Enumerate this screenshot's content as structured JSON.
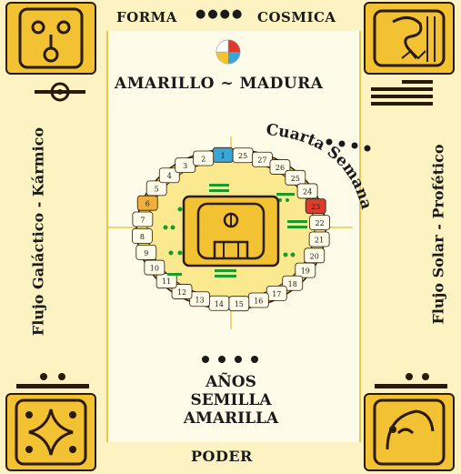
{
  "top": {
    "left_word": "FORMA",
    "right_word": "COSMICA",
    "dots": "●●●●"
  },
  "subtitle": "AMARILLO ~ MADURA",
  "side_left": "Flujo Galáctico - Kármico",
  "side_right": "Flujo Solar - Profético",
  "arc_label": "Cuarta Semana",
  "bottom_words": [
    "AÑOS",
    "SEMILLA",
    "AMARILLA"
  ],
  "bottom_label": "PODER",
  "ring_numbers": [
    "1",
    "25",
    "27",
    "26",
    "25",
    "24",
    "23",
    "22",
    "21",
    "20",
    "19",
    "18",
    "17",
    "16",
    "15",
    "14",
    "13",
    "12",
    "11",
    "10",
    "9",
    "8",
    "7",
    "6",
    "5",
    "4",
    "3",
    "2"
  ],
  "colors": {
    "gold": "#f2c233",
    "cream": "#fdf3c2",
    "green": "#1a9a2a",
    "blue_cell": "#3aa6d6",
    "red_cell": "#e23a2a",
    "orange_cell": "#f0b040"
  }
}
